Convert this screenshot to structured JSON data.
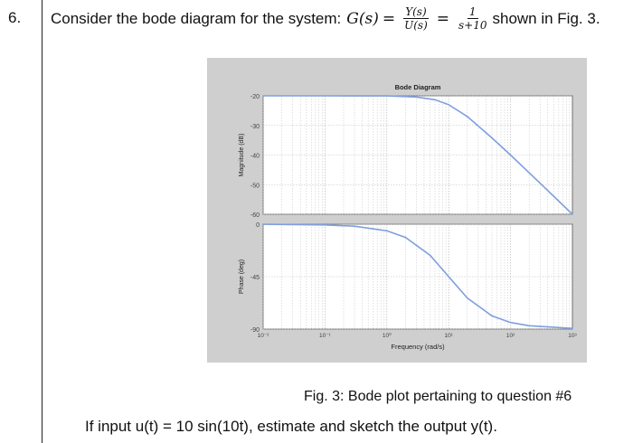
{
  "question": {
    "number": "6.",
    "lead_text": "Consider the bode diagram for the system:",
    "lhs": "G(s)",
    "frac1_num": "Y(s)",
    "frac1_den": "U(s)",
    "frac2_num": "1",
    "frac2_den": "s+10",
    "trail_text": "shown in Fig. 3."
  },
  "figure": {
    "caption": "Fig. 3:  Bode plot pertaining to question #6"
  },
  "task_text": "If input u(t) = 10 sin(10t), estimate and sketch the output y(t).",
  "chart_data": {
    "type": "line",
    "title": "Bode Diagram",
    "xlabel": "Frequency (rad/s)",
    "x_scale": "log",
    "xlim": [
      0.01,
      1000
    ],
    "x_tick_labels": [
      "10⁻²",
      "10⁻¹",
      "10⁰",
      "10¹",
      "10²",
      "10³"
    ],
    "grid": true,
    "line_color": "#7f9fdf",
    "magnitude": {
      "ylabel": "Magnitude (dB)",
      "ylim": [
        -60,
        -20
      ],
      "y_ticks": [
        -20,
        -30,
        -40,
        -50,
        -60
      ],
      "x": [
        0.01,
        0.1,
        1,
        3,
        6,
        10,
        20,
        50,
        100,
        300,
        1000
      ],
      "y": [
        -20,
        -20,
        -20.04,
        -20.4,
        -21.3,
        -23,
        -27,
        -34.2,
        -40,
        -49.5,
        -60
      ]
    },
    "phase": {
      "ylabel": "Phase (deg)",
      "ylim": [
        -90,
        0
      ],
      "y_ticks": [
        0,
        -45,
        -90
      ],
      "x": [
        0.01,
        0.1,
        0.3,
        1,
        2,
        5,
        10,
        20,
        50,
        100,
        200,
        1000
      ],
      "y": [
        -0.06,
        -0.6,
        -1.7,
        -5.7,
        -11.3,
        -26.6,
        -45,
        -63.4,
        -78.7,
        -84.3,
        -87.1,
        -89.4
      ]
    }
  }
}
